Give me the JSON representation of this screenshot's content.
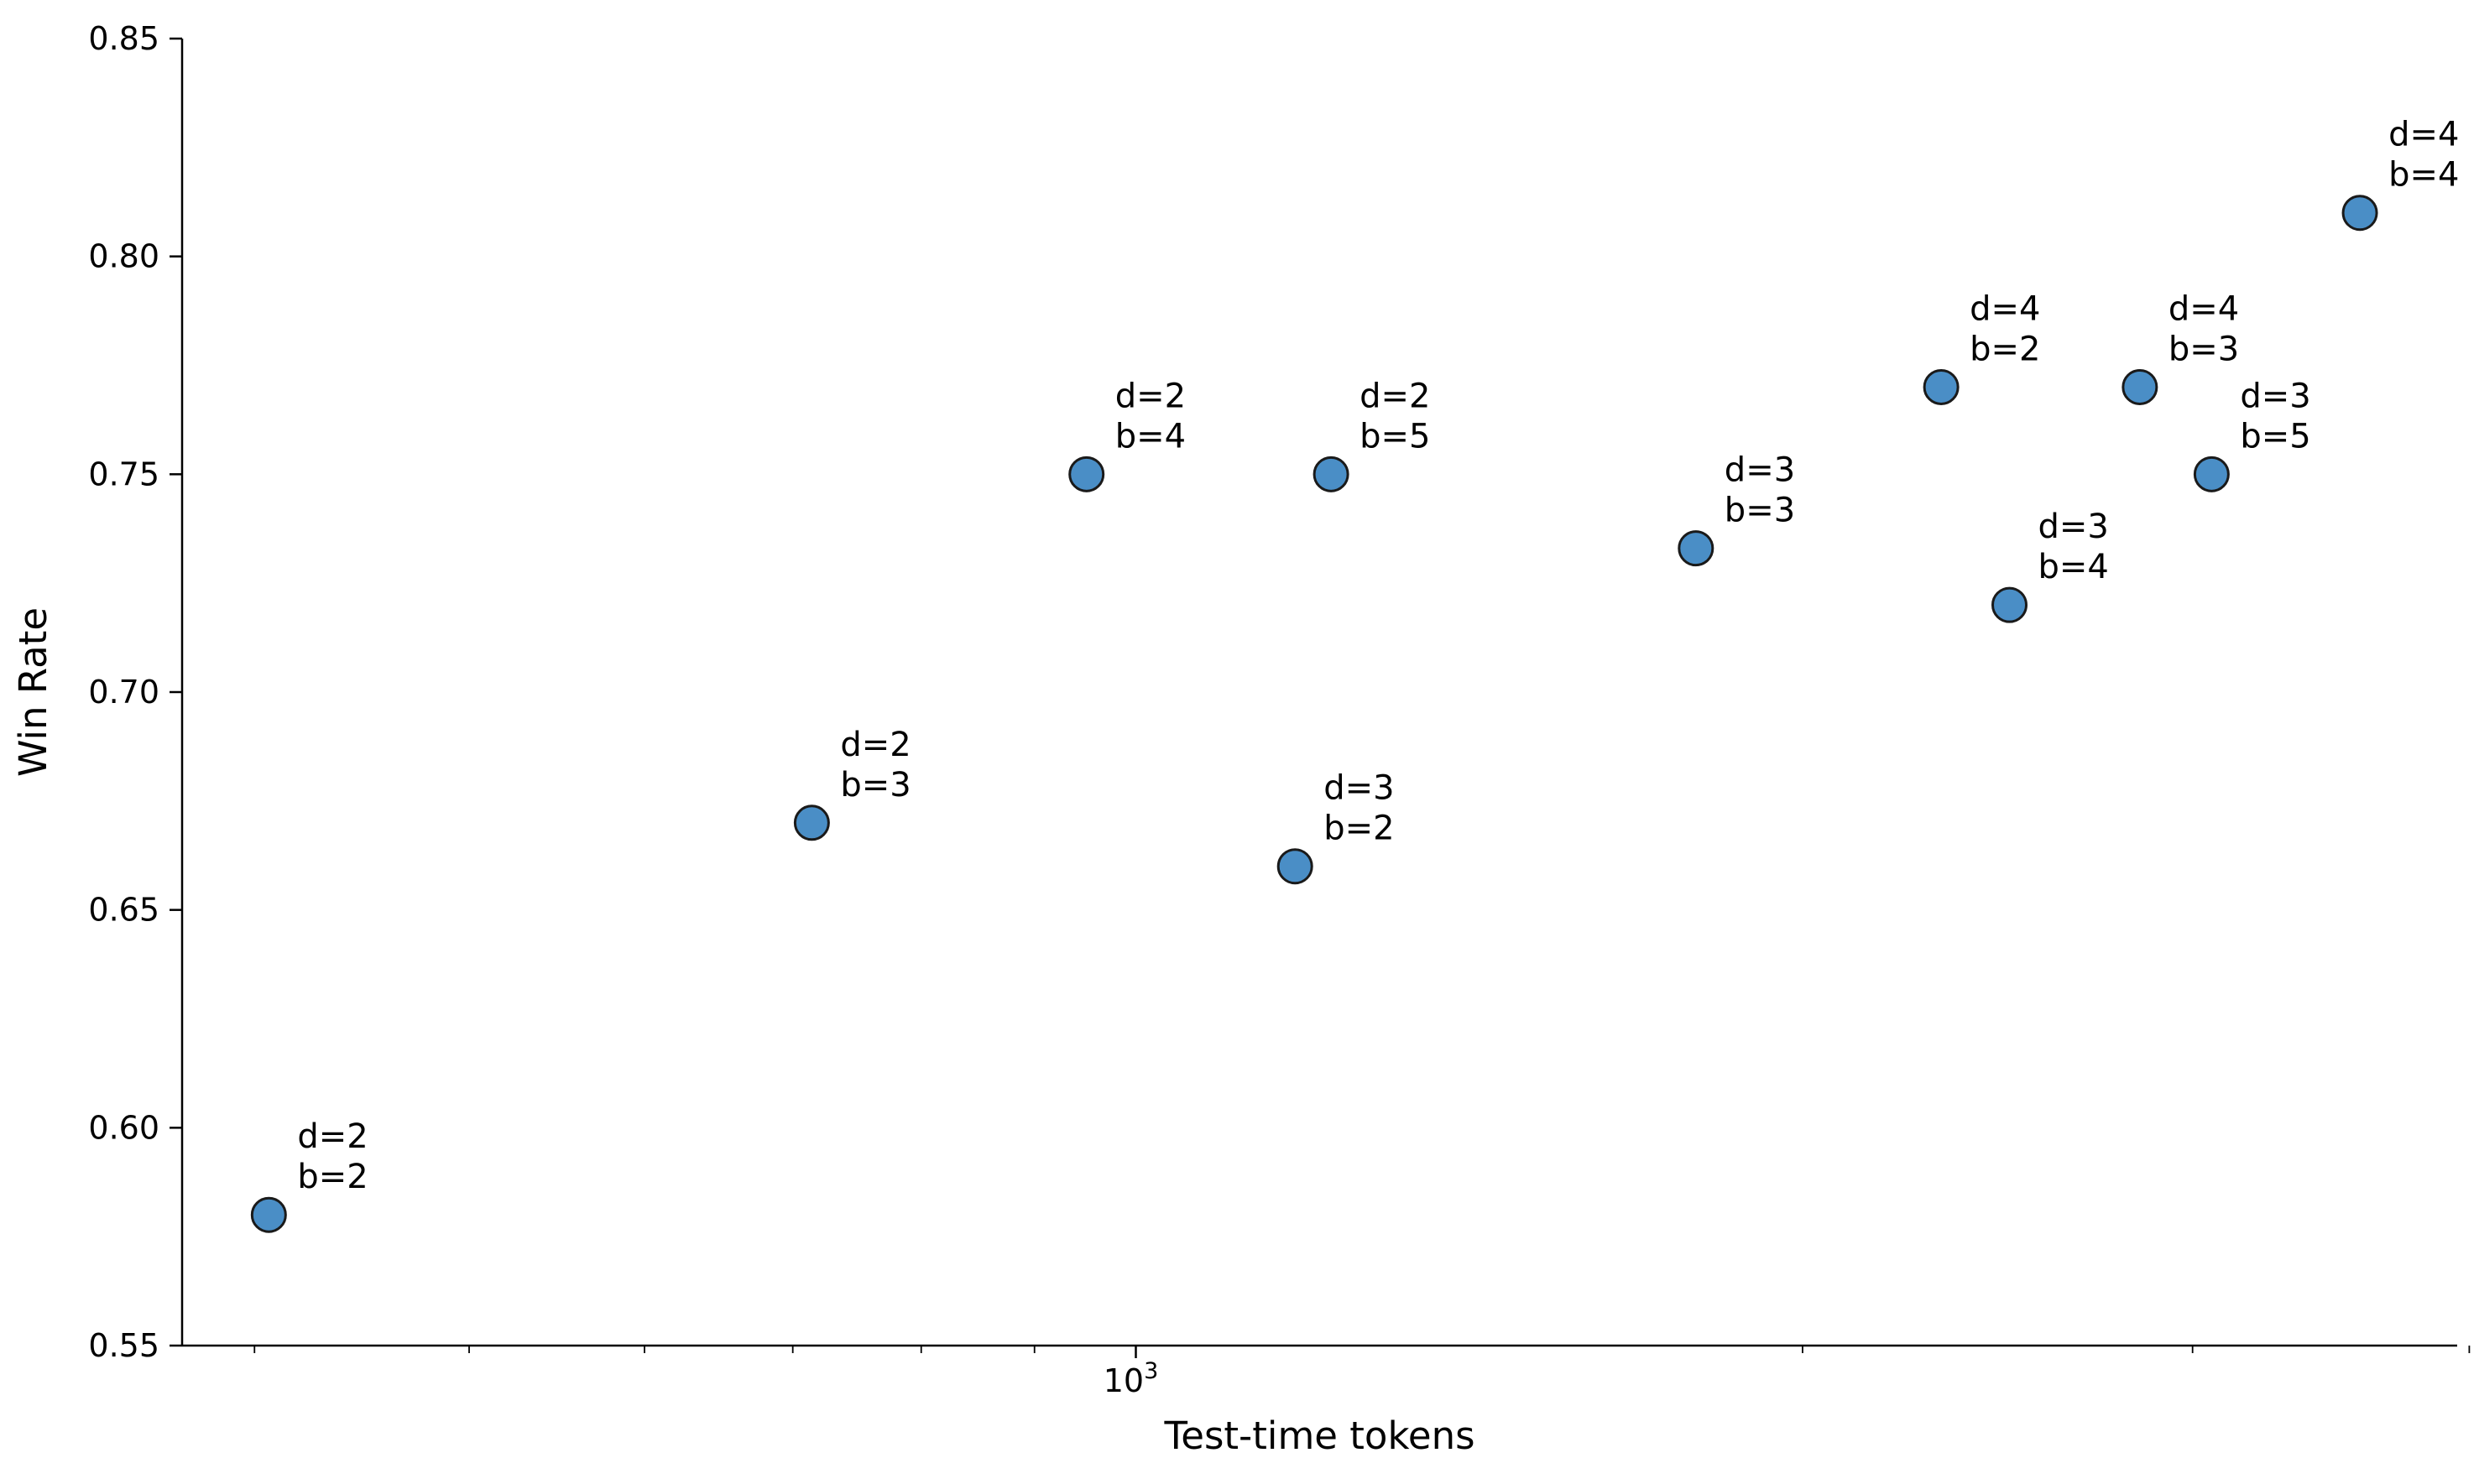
{
  "chart_data": {
    "type": "scatter",
    "xlabel": "Test-time tokens",
    "ylabel": "Win Rate",
    "x_scale": "log",
    "xlim": [
      371,
      3950
    ],
    "ylim": [
      0.55,
      0.85
    ],
    "y_ticks": [
      "0.55",
      "0.60",
      "0.65",
      "0.70",
      "0.75",
      "0.80",
      "0.85"
    ],
    "x_major_ticks": [
      {
        "value": 1000,
        "base": "10",
        "exp": "3"
      }
    ],
    "x_minor_ticks": [
      400,
      500,
      600,
      700,
      800,
      900,
      2000,
      3000,
      4000
    ],
    "grid": false,
    "legend": "none",
    "colors": {
      "marker_fill": "#4a8ec6",
      "marker_edge": "#1a1a1a"
    },
    "points": [
      {
        "x": 406,
        "y": 0.58,
        "d": "d=2",
        "b": "b=2"
      },
      {
        "x": 714,
        "y": 0.67,
        "d": "d=2",
        "b": "b=3"
      },
      {
        "x": 950,
        "y": 0.75,
        "d": "d=2",
        "b": "b=4"
      },
      {
        "x": 1225,
        "y": 0.75,
        "d": "d=2",
        "b": "b=5"
      },
      {
        "x": 1180,
        "y": 0.66,
        "d": "d=3",
        "b": "b=2"
      },
      {
        "x": 1790,
        "y": 0.733,
        "d": "d=3",
        "b": "b=3"
      },
      {
        "x": 2480,
        "y": 0.72,
        "d": "d=3",
        "b": "b=4"
      },
      {
        "x": 3060,
        "y": 0.75,
        "d": "d=3",
        "b": "b=5"
      },
      {
        "x": 2310,
        "y": 0.77,
        "d": "d=4",
        "b": "b=2"
      },
      {
        "x": 2840,
        "y": 0.77,
        "d": "d=4",
        "b": "b=3"
      },
      {
        "x": 3570,
        "y": 0.81,
        "d": "d=4",
        "b": "b=4"
      }
    ]
  }
}
